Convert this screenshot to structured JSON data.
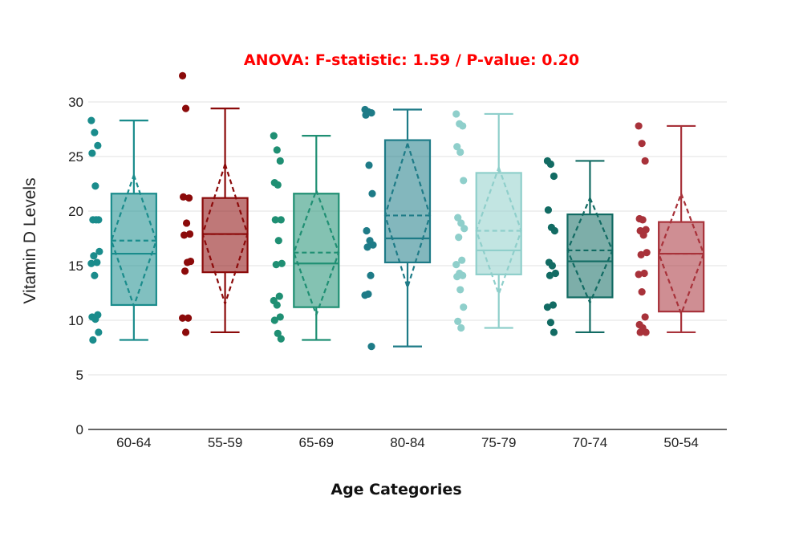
{
  "chart_data": {
    "type": "box",
    "title": "ANOVA: F-statistic: 1.59 / P-value: 0.20",
    "xlabel": "Age Categories",
    "ylabel": "Vitamin D Levels",
    "ylim": [
      0,
      32.5
    ],
    "yticks": [
      0,
      5,
      10,
      15,
      20,
      25,
      30
    ],
    "grid": true,
    "legend": "none",
    "boxmean": "sd",
    "points": "all",
    "categories": [
      "60-64",
      "55-59",
      "65-69",
      "80-84",
      "75-79",
      "70-74",
      "50-54"
    ],
    "series": [
      {
        "name": "60-64",
        "color": "#1a8c8c",
        "q1": 11.4,
        "median": 16.1,
        "q3": 21.6,
        "lowerfence": 8.2,
        "upperfence": 28.3,
        "mean": 17.3,
        "sd": 6.0,
        "points": [
          28.3,
          27.2,
          26.0,
          25.3,
          22.3,
          19.2,
          19.2,
          19.2,
          16.3,
          15.9,
          15.3,
          15.2,
          14.1,
          10.5,
          10.3,
          10.1,
          8.9,
          8.2
        ]
      },
      {
        "name": "55-59",
        "color": "#8b0a0a",
        "q1": 14.4,
        "median": 17.9,
        "q3": 21.2,
        "lowerfence": 8.9,
        "upperfence": 29.4,
        "mean": 17.9,
        "sd": 6.4,
        "points": [
          32.4,
          29.4,
          21.2,
          21.3,
          18.9,
          17.9,
          17.8,
          15.3,
          15.4,
          14.5,
          10.2,
          10.2,
          8.9
        ]
      },
      {
        "name": "65-69",
        "color": "#1f8f73",
        "q1": 11.2,
        "median": 15.2,
        "q3": 21.6,
        "lowerfence": 8.2,
        "upperfence": 26.9,
        "mean": 16.2,
        "sd": 5.7,
        "points": [
          26.9,
          25.6,
          24.6,
          22.6,
          22.4,
          19.2,
          19.2,
          17.3,
          15.2,
          15.1,
          12.2,
          11.8,
          11.4,
          10.3,
          10.0,
          8.8,
          8.3
        ]
      },
      {
        "name": "80-84",
        "color": "#1e7b87",
        "q1": 15.3,
        "median": 17.5,
        "q3": 26.5,
        "lowerfence": 7.6,
        "upperfence": 29.3,
        "mean": 19.6,
        "sd": 6.6,
        "points": [
          29.3,
          29.1,
          29.0,
          28.8,
          24.2,
          21.6,
          18.2,
          17.3,
          16.9,
          16.7,
          14.1,
          12.3,
          12.4,
          7.6
        ]
      },
      {
        "name": "75-79",
        "color": "#8fcfcb",
        "q1": 14.2,
        "median": 16.4,
        "q3": 23.5,
        "lowerfence": 9.3,
        "upperfence": 28.9,
        "mean": 18.2,
        "sd": 5.8,
        "points": [
          28.9,
          28.0,
          27.8,
          25.9,
          25.4,
          22.8,
          19.4,
          18.9,
          18.4,
          17.6,
          15.5,
          15.1,
          14.3,
          14.1,
          14.0,
          12.8,
          11.2,
          9.9,
          9.3
        ]
      },
      {
        "name": "70-74",
        "color": "#126b63",
        "q1": 12.1,
        "median": 15.4,
        "q3": 19.7,
        "lowerfence": 8.9,
        "upperfence": 24.6,
        "mean": 16.4,
        "sd": 4.8,
        "points": [
          24.6,
          24.3,
          23.2,
          20.1,
          18.5,
          18.2,
          15.3,
          15.0,
          14.3,
          14.1,
          11.4,
          11.2,
          9.8,
          8.9
        ]
      },
      {
        "name": "50-54",
        "color": "#a8323a",
        "q1": 10.8,
        "median": 16.1,
        "q3": 19.0,
        "lowerfence": 8.9,
        "upperfence": 27.8,
        "mean": 16.1,
        "sd": 5.5,
        "points": [
          27.8,
          26.2,
          24.6,
          19.3,
          19.2,
          18.3,
          18.2,
          17.8,
          16.2,
          16.0,
          14.3,
          14.2,
          12.6,
          10.3,
          9.6,
          9.3,
          8.9,
          8.9
        ]
      }
    ]
  }
}
